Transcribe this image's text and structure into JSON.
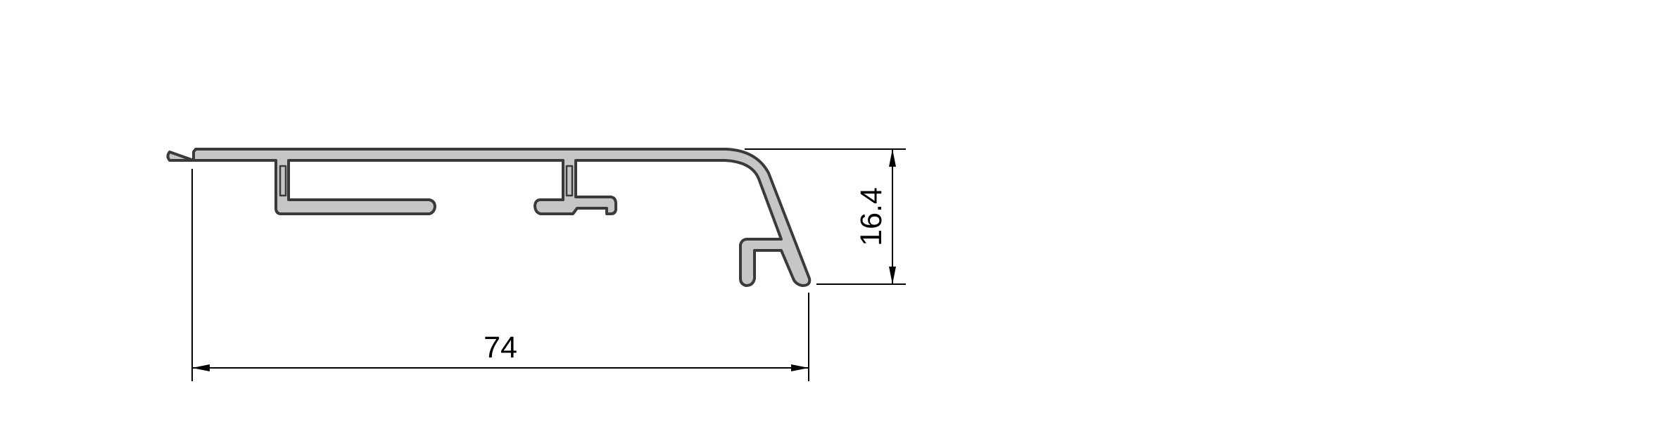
{
  "drawing": {
    "dimensions": {
      "width_label": "74",
      "height_label": "16.4"
    },
    "colors": {
      "profile_fill": "#c6c6c6",
      "profile_outline": "#3a3a3a",
      "dimension_line": "#000000",
      "background": "#ffffff"
    }
  }
}
